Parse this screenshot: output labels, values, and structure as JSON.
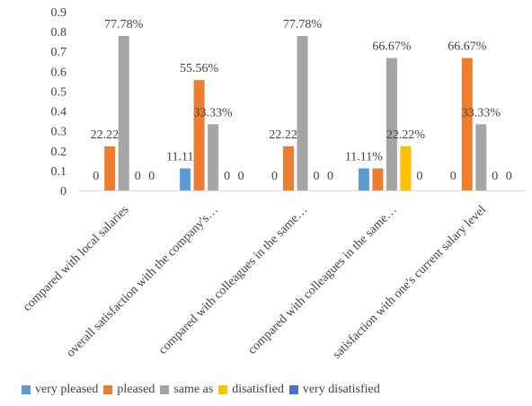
{
  "chart_data": {
    "type": "bar",
    "title": "",
    "xlabel": "",
    "ylabel": "",
    "ylim": [
      0,
      0.9
    ],
    "yticks": [
      "0",
      "0.1",
      "0.2",
      "0.3",
      "0.4",
      "0.5",
      "0.6",
      "0.7",
      "0.8",
      "0.9"
    ],
    "grid": false,
    "legend_position": "bottom",
    "categories": [
      "compared with local salaries",
      "overall satisfaction with the company's…",
      "compared with colleagues in the same…",
      "compared with colleagues in the same…",
      "satisfaction with one's current salary level"
    ],
    "series": [
      {
        "name": "very pleased",
        "color": "#5B9BD5",
        "values": [
          0,
          0.1111,
          0,
          0.1111,
          0
        ],
        "labels": [
          "0",
          "11.11%",
          "0",
          "11.11%",
          "0"
        ]
      },
      {
        "name": "pleased",
        "color": "#ED7D31",
        "values": [
          0.2222,
          0.5556,
          0.2222,
          0.1111,
          0.6667
        ],
        "labels": [
          "22.22%",
          "55.56%",
          "22.22%",
          "",
          "66.67%"
        ]
      },
      {
        "name": "same as",
        "color": "#A5A5A5",
        "values": [
          0.7778,
          0.3333,
          0.7778,
          0.6667,
          0.3333
        ],
        "labels": [
          "77.78%",
          "33.33%",
          "77.78%",
          "66.67%",
          "33.33%"
        ]
      },
      {
        "name": "disatisfied",
        "color": "#FFC000",
        "values": [
          0,
          0,
          0,
          0.2222,
          0
        ],
        "labels": [
          "0",
          "0",
          "0",
          "22.22%",
          "0"
        ]
      },
      {
        "name": "very disatisfied",
        "color": "#4472C4",
        "values": [
          0,
          0,
          0,
          0,
          0
        ],
        "labels": [
          "0",
          "0",
          "0",
          "0",
          "0"
        ]
      }
    ]
  }
}
